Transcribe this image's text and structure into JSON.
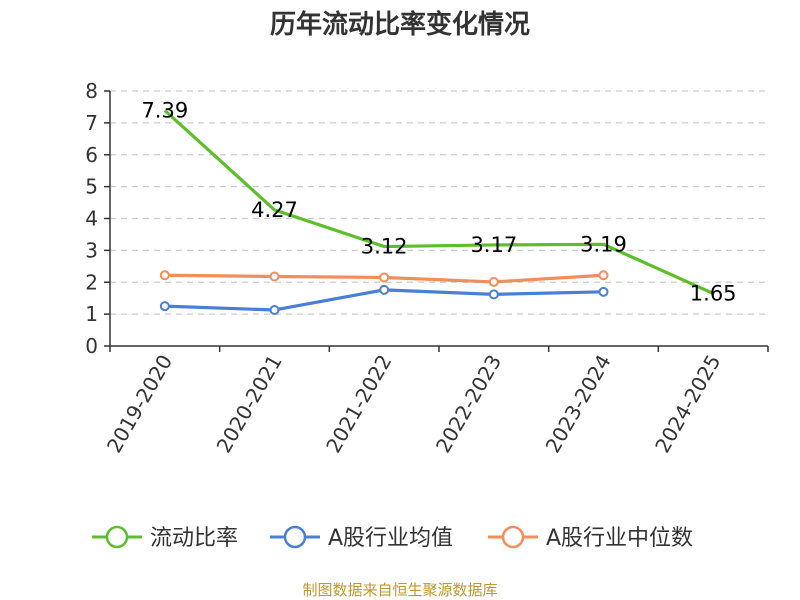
{
  "chart_data": {
    "type": "line",
    "title": "历年流动比率变化情况",
    "categories": [
      "2019-2020",
      "2020-2021",
      "2021-2022",
      "2022-2023",
      "2023-2024",
      "2024-2025"
    ],
    "ylim": [
      0,
      8
    ],
    "yticks": [
      0,
      1,
      2,
      3,
      4,
      5,
      6,
      7,
      8
    ],
    "grid": true,
    "legend_position": "bottom",
    "series": [
      {
        "name": "流动比率",
        "color": "#5cbf2a",
        "values": [
          7.39,
          4.27,
          3.12,
          3.17,
          3.19,
          1.65
        ],
        "data_labels": [
          "7.39",
          "4.27",
          "3.12",
          "3.17",
          "3.19",
          "1.65"
        ],
        "show_markers": false
      },
      {
        "name": "A股行业均值",
        "color": "#4a7fd6",
        "values": [
          1.25,
          1.13,
          1.76,
          1.62,
          1.7,
          null
        ],
        "show_markers": true
      },
      {
        "name": "A股行业中位数",
        "color": "#f28e5b",
        "values": [
          2.22,
          2.18,
          2.15,
          2.01,
          2.22,
          null
        ],
        "show_markers": true
      }
    ],
    "source": "制图数据来自恒生聚源数据库"
  }
}
